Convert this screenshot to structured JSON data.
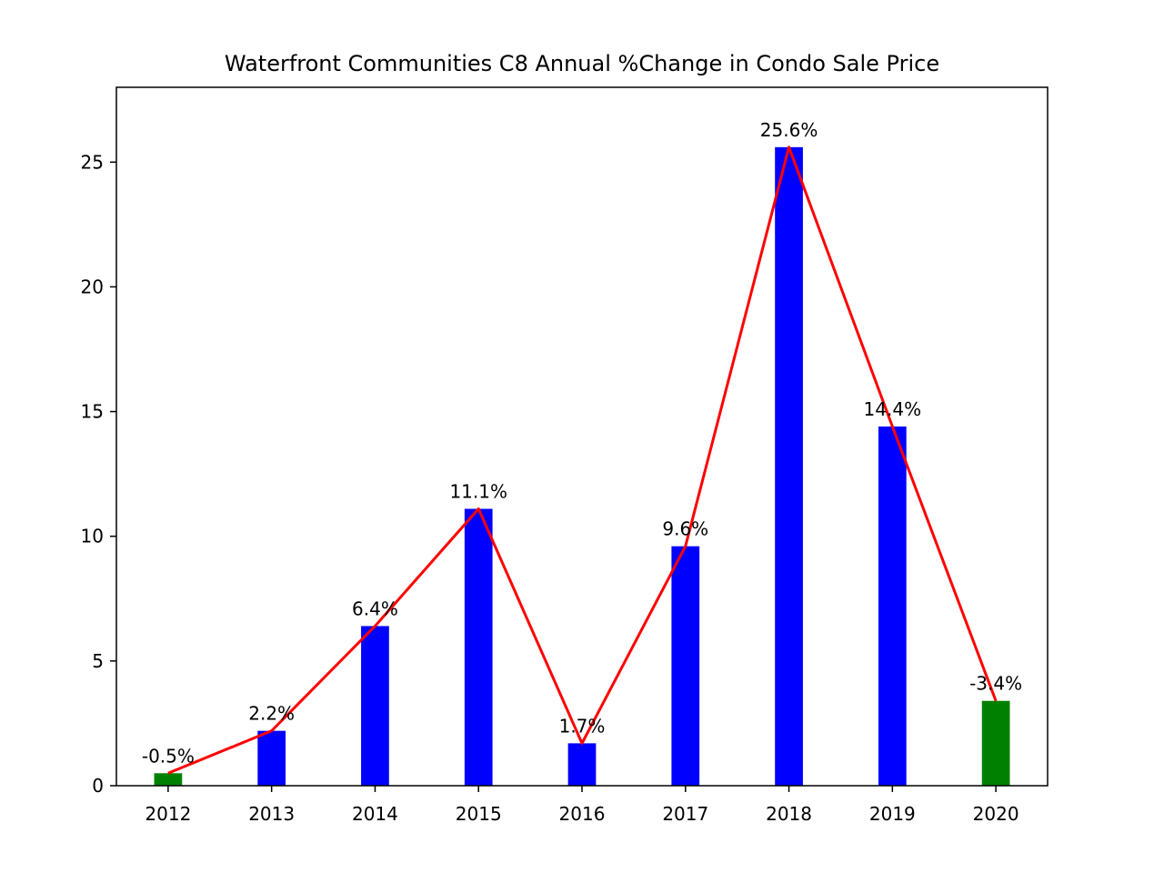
{
  "chart_data": {
    "type": "bar",
    "title": "Waterfront Communities C8 Annual %Change in Condo Sale Price",
    "xlabel": "",
    "ylabel": "",
    "categories": [
      "2012",
      "2013",
      "2014",
      "2015",
      "2016",
      "2017",
      "2018",
      "2019",
      "2020"
    ],
    "values": [
      0.5,
      2.2,
      6.4,
      11.1,
      1.7,
      9.6,
      25.6,
      14.4,
      3.4
    ],
    "labels": [
      "-0.5%",
      "2.2%",
      "6.4%",
      "11.1%",
      "1.7%",
      "9.6%",
      "25.6%",
      "14.4%",
      "-3.4%"
    ],
    "bar_colors": [
      "#008000",
      "#0000ff",
      "#0000ff",
      "#0000ff",
      "#0000ff",
      "#0000ff",
      "#0000ff",
      "#0000ff",
      "#008000"
    ],
    "line": {
      "values": [
        0.5,
        2.2,
        6.4,
        11.1,
        1.7,
        9.6,
        25.6,
        14.4,
        3.4
      ],
      "color": "#ff0000"
    },
    "ylim": [
      0,
      28
    ],
    "yticks": [
      0,
      5,
      10,
      15,
      20,
      25
    ],
    "grid": false,
    "legend": "none"
  }
}
